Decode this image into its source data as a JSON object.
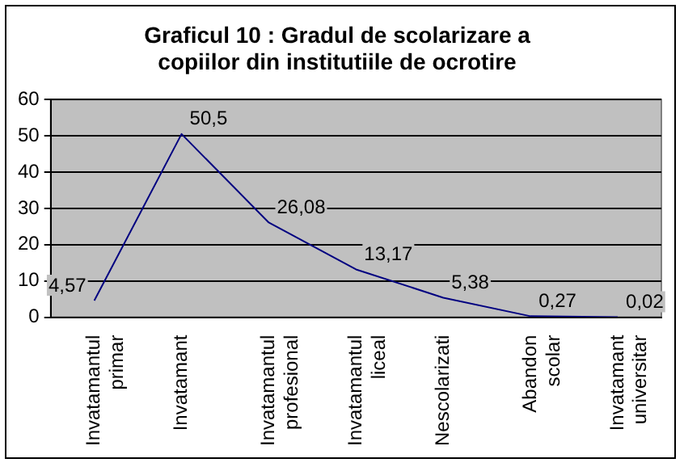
{
  "chart_data": {
    "type": "line",
    "title": "Graficul 10 : Gradul de scolarizare a copiilor din institutiile de ocrotire",
    "categories": [
      "Invatamantul primar",
      "Invatamant",
      "Invatamantul profesional",
      "Invatamantul liceal",
      "Nescolarizati",
      "Abandon scolar",
      "Invatamant universitar"
    ],
    "series": [
      {
        "color": "#000080",
        "values": [
          4.57,
          50.5,
          26.08,
          13.17,
          5.38,
          0.27,
          0.02
        ],
        "value_labels": [
          "4,57",
          "50,5",
          "26,08",
          "13,17",
          "5,38",
          "0,27",
          "0,02"
        ]
      }
    ],
    "ylim": [
      0,
      60
    ],
    "yticks": [
      0,
      10,
      20,
      30,
      40,
      50,
      60
    ],
    "grid": "y",
    "legend": false,
    "marker": "none",
    "line_style": "solid"
  }
}
